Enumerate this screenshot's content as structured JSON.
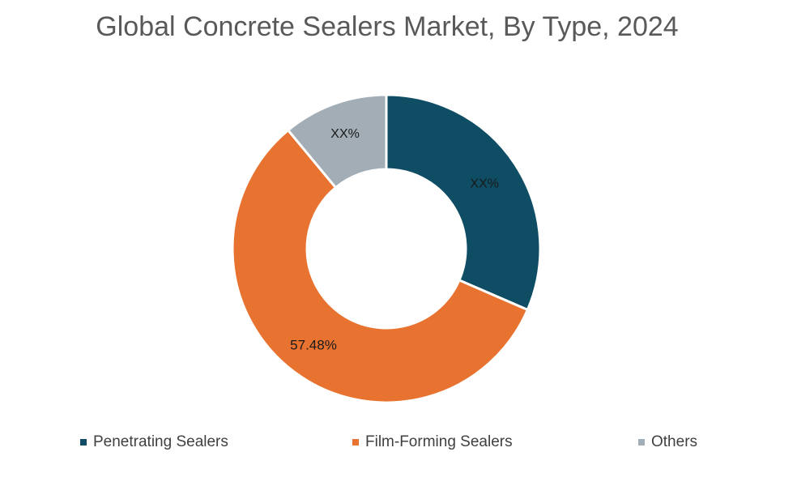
{
  "chart_data": {
    "type": "pie",
    "title": "Global Concrete Sealers Market, By Type, 2024",
    "style": "donut",
    "categories": [
      "Penetrating Sealers",
      "Film-Forming Sealers",
      "Others"
    ],
    "values": [
      31.5,
      57.48,
      11.02
    ],
    "data_labels": [
      "XX%",
      "57.48%",
      "XX%"
    ],
    "colors": [
      "#0e4d64",
      "#e87331",
      "#a2adb6"
    ],
    "legend": "bottom"
  }
}
